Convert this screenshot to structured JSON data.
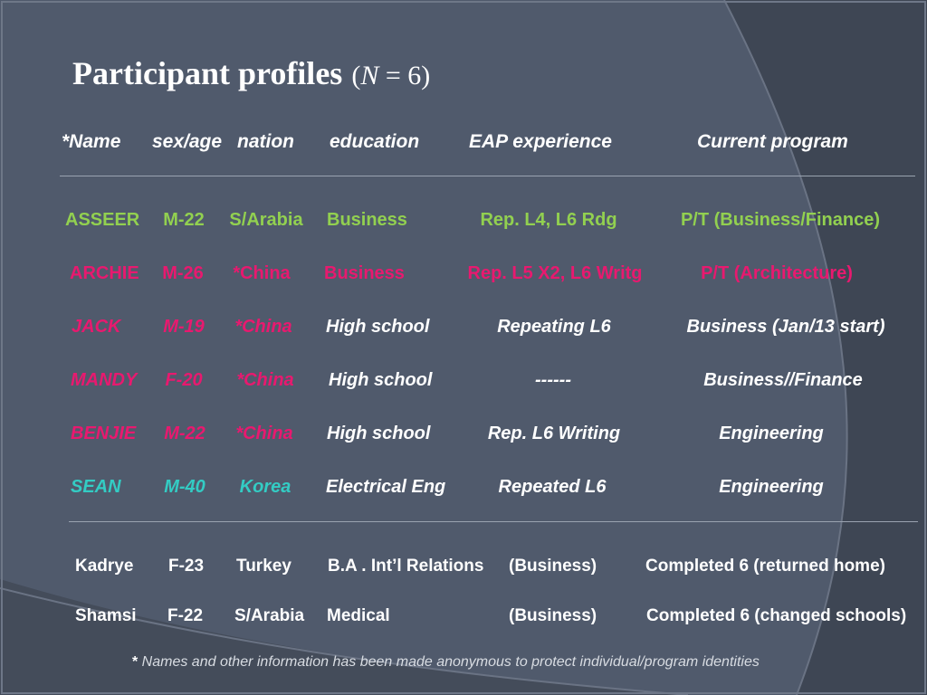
{
  "title": {
    "main": "Participant profiles",
    "open": "(",
    "n": "N",
    "eq": " = 6",
    "close": ")"
  },
  "columns": [
    "*Name",
    "sex/age",
    "nation",
    "education",
    "EAP  experience",
    "Current program"
  ],
  "rows": [
    {
      "name": "ASSEER",
      "sex_age": "M-22",
      "nation": "S/Arabia",
      "education": "Business",
      "eap": "Rep. L4, L6 Rdg",
      "program": "P/T (Business/Finance)",
      "color": "#92d050"
    },
    {
      "name": "ARCHIE",
      "sex_age": "M-26",
      "nation": "*China",
      "education": "Business",
      "eap": "Rep. L5 X2, L6 Writg",
      "program": "P/T (Architecture)",
      "color": "#e8196f"
    },
    {
      "name": "JACK",
      "sex_age": "M-19",
      "nation": "*China",
      "education": "High school",
      "eap": "Repeating L6",
      "program": "Business (Jan/13 start)"
    },
    {
      "name": "MANDY",
      "sex_age": "F-20",
      "nation": "*China",
      "education": "High school",
      "eap": "------",
      "program": "Business//Finance"
    },
    {
      "name": "BENJIE",
      "sex_age": "M-22",
      "nation": "*China",
      "education": "High school",
      "eap": "Rep. L6 Writing",
      "program": "Engineering"
    },
    {
      "name": "SEAN",
      "sex_age": "M-40",
      "nation": "Korea",
      "education": "Electrical Eng",
      "eap": "Repeated L6",
      "program": "Engineering"
    }
  ],
  "others": [
    {
      "name": "Kadrye",
      "sex_age": "F-23",
      "nation": "Turkey",
      "education": "B.A . Int’l Relations",
      "eap": "(Business)",
      "program": "Completed 6  (returned home)"
    },
    {
      "name": "Shamsi",
      "sex_age": "F-22",
      "nation": "S/Arabia",
      "education": "Medical",
      "eap": "(Business)",
      "program": "Completed 6  (changed schools)"
    }
  ],
  "footnote": {
    "star": "*",
    "text": " Names and other information has been made anonymous to protect individual/program identities"
  },
  "colors": {
    "background": "#505a6c",
    "green": "#92d050",
    "pink": "#e8196f",
    "teal": "#33ccc4",
    "text": "#ffffff"
  }
}
